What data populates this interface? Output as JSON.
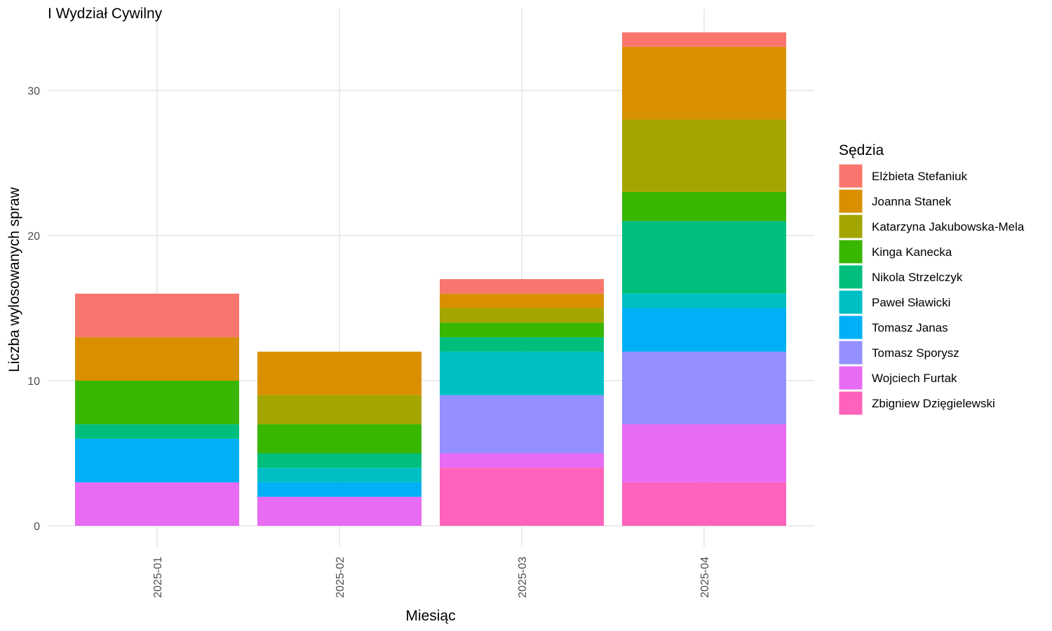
{
  "chart_data": {
    "type": "bar",
    "stacked": true,
    "title": "I Wydział Cywilny",
    "xlabel": "Miesiąc",
    "ylabel": "Liczba wylosowanych spraw",
    "categories": [
      "2025-01",
      "2025-02",
      "2025-03",
      "2025-04"
    ],
    "ylim": [
      0,
      34
    ],
    "yticks": [
      0,
      10,
      20,
      30
    ],
    "grid": true,
    "legend_title": "Sędzia",
    "legend_position": "right",
    "series": [
      {
        "name": "Elżbieta Stefaniuk",
        "color": "#F8766D",
        "values": [
          3,
          0,
          1,
          1
        ]
      },
      {
        "name": "Joanna Stanek",
        "color": "#D89000",
        "values": [
          3,
          3,
          1,
          5
        ]
      },
      {
        "name": "Katarzyna Jakubowska-Mela",
        "color": "#A3A500",
        "values": [
          0,
          2,
          1,
          5
        ]
      },
      {
        "name": "Kinga Kanecka",
        "color": "#39B600",
        "values": [
          3,
          2,
          1,
          2
        ]
      },
      {
        "name": "Nikola Strzelczyk",
        "color": "#00BF7D",
        "values": [
          1,
          1,
          1,
          5
        ]
      },
      {
        "name": "Paweł Sławicki",
        "color": "#00BFC4",
        "values": [
          0,
          1,
          3,
          1
        ]
      },
      {
        "name": "Tomasz Janas",
        "color": "#00B0F6",
        "values": [
          3,
          1,
          0,
          3
        ]
      },
      {
        "name": "Tomasz Sporysz",
        "color": "#9590FF",
        "values": [
          0,
          0,
          4,
          5
        ]
      },
      {
        "name": "Wojciech Furtak",
        "color": "#E76BF3",
        "values": [
          3,
          2,
          1,
          4
        ]
      },
      {
        "name": "Zbigniew Dzięgielewski",
        "color": "#FF62BC",
        "values": [
          0,
          0,
          4,
          3
        ]
      }
    ]
  }
}
